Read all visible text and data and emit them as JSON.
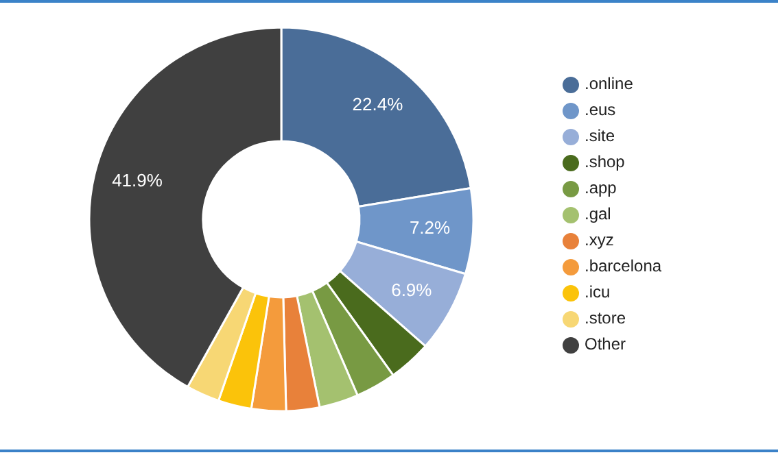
{
  "chart_data": {
    "type": "donut",
    "categories": [
      ".online",
      ".eus",
      ".site",
      ".shop",
      ".app",
      ".gal",
      ".xyz",
      ".barcelona",
      ".icu",
      ".store",
      "Other"
    ],
    "values": [
      22.4,
      7.2,
      6.9,
      3.6,
      3.4,
      3.3,
      2.8,
      2.9,
      2.8,
      2.8,
      41.9
    ],
    "colors": [
      "#4a6d98",
      "#6f96c9",
      "#97aed8",
      "#4a6b1d",
      "#789a43",
      "#a4c16f",
      "#e8813a",
      "#f49b3c",
      "#fbc30a",
      "#f7d774",
      "#404040"
    ],
    "value_labels": [
      "22.4%",
      "7.2%",
      "6.9%",
      null,
      null,
      null,
      null,
      null,
      null,
      null,
      "41.9%"
    ],
    "legend": "right"
  }
}
